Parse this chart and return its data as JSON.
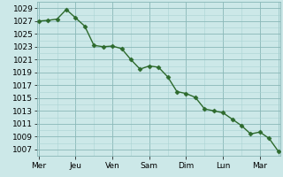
{
  "y_values": [
    1027.0,
    1027.1,
    1027.3,
    1028.8,
    1027.5,
    1026.2,
    1023.2,
    1023.0,
    1023.1,
    1022.7,
    1021.0,
    1019.5,
    1020.0,
    1019.8,
    1018.3,
    1016.0,
    1015.7,
    1015.1,
    1013.3,
    1013.0,
    1012.7,
    1011.7,
    1010.7,
    1009.4,
    1009.7,
    1008.7,
    1006.7
  ],
  "x_data": [
    0,
    0.5,
    1,
    1.5,
    2,
    2.5,
    3,
    3.5,
    4,
    4.5,
    5,
    5.5,
    6,
    6.5,
    7,
    7.5,
    8,
    8.5,
    9,
    9.5,
    10,
    10.5,
    11,
    11.5,
    12,
    12.5,
    13
  ],
  "ylim_min": 1006,
  "ylim_max": 1030,
  "ytick_min": 1007,
  "ytick_max": 1029,
  "ytick_step": 2,
  "xlim_min": -0.1,
  "xlim_max": 13.1,
  "day_tick_positions": [
    0,
    2,
    4,
    6,
    8,
    10,
    12
  ],
  "day_label_names": [
    "Mer",
    "Jeu",
    "Ven",
    "Sam",
    "Dim",
    "Lun",
    "Mar"
  ],
  "half_day_positions": [
    0,
    1,
    2,
    3,
    4,
    5,
    6,
    7,
    8,
    9,
    10,
    11,
    12,
    13
  ],
  "line_color": "#2d6a2d",
  "marker_color": "#2d6a2d",
  "bg_color": "#cce8e8",
  "grid_major_color": "#8ab8b8",
  "grid_minor_color": "#aad4d4",
  "tick_label_fontsize": 6.5,
  "line_width": 1.0,
  "marker_size": 2.5
}
